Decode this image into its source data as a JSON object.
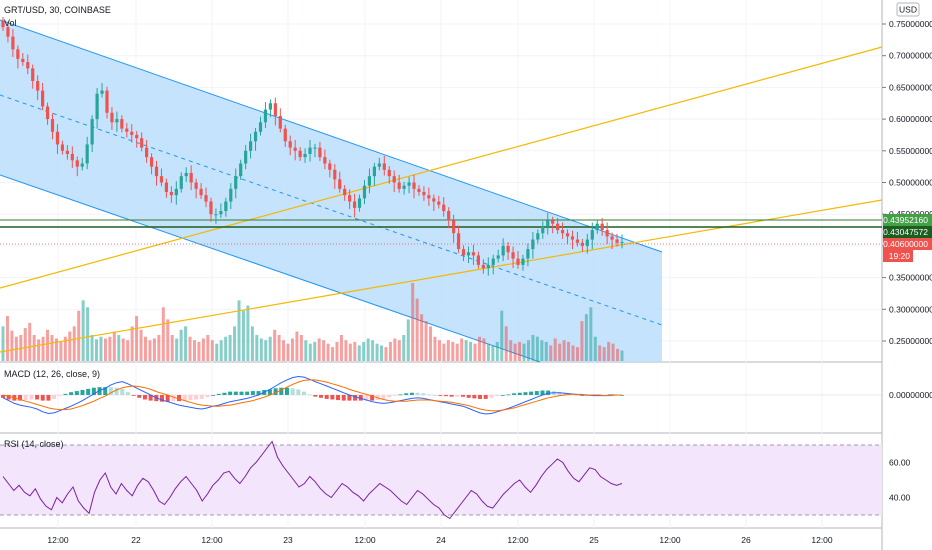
{
  "header": {
    "title": "GRT/USD, 30, COINBASE",
    "vol_label": "Vol",
    "currency": "USD"
  },
  "macd": {
    "label": "MACD (12, 26, close, 9)"
  },
  "rsi": {
    "label": "RSI (14, close)"
  },
  "price_tags": {
    "level_1": "0.43952160",
    "level_2": "0.43047572",
    "last_price": "0.40600000",
    "countdown": "19:20"
  },
  "colors": {
    "up": "#26a69a",
    "down": "#ef5350",
    "channel_fill": "#bbdefb",
    "channel_line": "#2196f3",
    "trend_line": "#f5b800",
    "level_line": "#2e7d32",
    "macd_line": "#2962ff",
    "signal_line": "#ff6d00",
    "rsi_line": "#7b1fa2",
    "rsi_band": "#f3e5fb"
  },
  "chart_data": [
    {
      "type": "candlestick",
      "title": "GRT/USD, 30, COINBASE",
      "x_ticks": [
        "12:00",
        "22",
        "12:00",
        "23",
        "12:00",
        "24",
        "12:00",
        "25",
        "12:00",
        "26",
        "12:00"
      ],
      "y_ticks": [
        "0.75000000",
        "0.70000000",
        "0.65000000",
        "0.60000000",
        "0.55000000",
        "0.50000000",
        "0.45000000",
        "0.40000000",
        "0.35000000",
        "0.30000000",
        "0.25000000"
      ],
      "ylim": [
        0.21,
        0.77
      ],
      "last_price": 0.406,
      "horizontal_levels": [
        0.4395216,
        0.43047572
      ],
      "close": [
        0.745,
        0.73,
        0.71,
        0.695,
        0.69,
        0.68,
        0.66,
        0.645,
        0.62,
        0.6,
        0.58,
        0.56,
        0.55,
        0.545,
        0.535,
        0.525,
        0.53,
        0.56,
        0.6,
        0.64,
        0.645,
        0.61,
        0.595,
        0.6,
        0.585,
        0.58,
        0.575,
        0.57,
        0.555,
        0.54,
        0.525,
        0.51,
        0.5,
        0.485,
        0.48,
        0.49,
        0.51,
        0.515,
        0.5,
        0.49,
        0.48,
        0.47,
        0.45,
        0.45,
        0.455,
        0.47,
        0.49,
        0.51,
        0.53,
        0.55,
        0.565,
        0.58,
        0.595,
        0.615,
        0.625,
        0.605,
        0.585,
        0.565,
        0.555,
        0.55,
        0.54,
        0.545,
        0.555,
        0.555,
        0.54,
        0.53,
        0.52,
        0.505,
        0.49,
        0.48,
        0.47,
        0.46,
        0.475,
        0.495,
        0.51,
        0.525,
        0.53,
        0.52,
        0.51,
        0.5,
        0.49,
        0.495,
        0.5,
        0.49,
        0.485,
        0.48,
        0.475,
        0.47,
        0.465,
        0.455,
        0.44,
        0.42,
        0.395,
        0.385,
        0.39,
        0.385,
        0.37,
        0.365,
        0.37,
        0.38,
        0.385,
        0.4,
        0.39,
        0.38,
        0.37,
        0.38,
        0.395,
        0.41,
        0.42,
        0.43,
        0.44,
        0.435,
        0.425,
        0.42,
        0.415,
        0.41,
        0.405,
        0.4,
        0.41,
        0.425,
        0.435,
        0.425,
        0.415,
        0.41,
        0.405,
        0.406
      ]
    },
    {
      "type": "bar",
      "title": "Vol",
      "values": [
        40,
        52,
        35,
        28,
        30,
        38,
        44,
        30,
        25,
        28,
        36,
        30,
        26,
        22,
        28,
        34,
        40,
        58,
        70,
        62,
        30,
        25,
        28,
        26,
        28,
        34,
        30,
        26,
        24,
        40,
        52,
        36,
        28,
        24,
        26,
        30,
        62,
        48,
        30,
        26,
        36,
        40,
        28,
        24,
        22,
        26,
        30,
        24,
        20,
        24,
        28,
        30,
        40,
        70,
        58,
        64,
        40,
        30,
        26,
        24,
        28,
        36,
        30,
        24,
        20,
        26,
        34,
        30,
        24,
        20,
        22,
        26,
        24,
        20,
        16,
        22,
        30,
        24,
        20,
        22,
        18,
        22,
        26,
        24,
        20,
        18,
        16,
        22,
        26,
        24,
        30,
        48,
        90,
        72,
        54,
        46,
        40,
        28,
        24,
        20,
        24,
        22,
        20,
        26,
        24,
        22,
        20,
        28,
        26,
        20,
        18,
        22,
        58,
        40,
        24,
        20,
        22,
        20,
        24,
        30,
        28,
        24,
        22,
        18,
        26,
        20,
        24,
        22,
        18,
        16,
        46,
        54,
        62,
        28,
        18,
        16,
        22,
        20,
        14,
        12
      ]
    },
    {
      "type": "line",
      "title": "MACD (12, 26, close, 9)",
      "y_ticks": [
        "0.00000000"
      ],
      "ylim": [
        -0.05,
        0.05
      ],
      "series": [
        {
          "name": "MACD",
          "values": [
            -0.005,
            -0.01,
            -0.015,
            -0.018,
            -0.02,
            -0.022,
            -0.025,
            -0.03,
            -0.033,
            -0.032,
            -0.028,
            -0.024,
            -0.02,
            -0.015,
            -0.01,
            -0.004,
            0.002,
            0.008,
            0.012,
            0.018,
            0.022,
            0.024,
            0.02,
            0.015,
            0.01,
            0.005,
            0.0,
            -0.005,
            -0.009,
            -0.012,
            -0.015,
            -0.018,
            -0.02,
            -0.022,
            -0.024,
            -0.025,
            -0.023,
            -0.02,
            -0.018,
            -0.015,
            -0.012,
            -0.01,
            -0.008,
            -0.006,
            -0.003,
            0.0,
            0.005,
            0.01,
            0.016,
            0.022,
            0.027,
            0.031,
            0.033,
            0.032,
            0.028,
            0.024,
            0.02,
            0.016,
            0.012,
            0.008,
            0.004,
            0.0,
            -0.003,
            -0.006,
            -0.009,
            -0.012,
            -0.014,
            -0.015,
            -0.014,
            -0.012,
            -0.01,
            -0.008,
            -0.006,
            -0.005,
            -0.006,
            -0.008,
            -0.01,
            -0.012,
            -0.014,
            -0.016,
            -0.018,
            -0.02,
            -0.024,
            -0.028,
            -0.032,
            -0.034,
            -0.033,
            -0.03,
            -0.027,
            -0.024,
            -0.02,
            -0.016,
            -0.012,
            -0.008,
            -0.004,
            0.0,
            0.003,
            0.004,
            0.004,
            0.003,
            0.002,
            0.001,
            0.0,
            0.0,
            -0.001,
            -0.001,
            -0.001,
            0.0,
            0.0,
            0.0
          ]
        },
        {
          "name": "Signal",
          "values": [
            0.0,
            -0.002,
            -0.005,
            -0.008,
            -0.011,
            -0.014,
            -0.017,
            -0.02,
            -0.023,
            -0.025,
            -0.026,
            -0.026,
            -0.025,
            -0.022,
            -0.019,
            -0.015,
            -0.011,
            -0.006,
            -0.002,
            0.004,
            0.009,
            0.013,
            0.015,
            0.016,
            0.015,
            0.013,
            0.01,
            0.006,
            0.003,
            0.0,
            -0.004,
            -0.007,
            -0.01,
            -0.013,
            -0.016,
            -0.018,
            -0.019,
            -0.02,
            -0.02,
            -0.019,
            -0.018,
            -0.016,
            -0.014,
            -0.012,
            -0.01,
            -0.007,
            -0.004,
            0.0,
            0.004,
            0.009,
            0.014,
            0.019,
            0.023,
            0.026,
            0.027,
            0.027,
            0.025,
            0.023,
            0.02,
            0.017,
            0.014,
            0.01,
            0.007,
            0.004,
            0.001,
            -0.002,
            -0.005,
            -0.008,
            -0.01,
            -0.011,
            -0.011,
            -0.011,
            -0.01,
            -0.009,
            -0.009,
            -0.009,
            -0.01,
            -0.011,
            -0.012,
            -0.013,
            -0.015,
            -0.017,
            -0.019,
            -0.022,
            -0.025,
            -0.027,
            -0.028,
            -0.028,
            -0.027,
            -0.025,
            -0.023,
            -0.02,
            -0.017,
            -0.014,
            -0.011,
            -0.008,
            -0.005,
            -0.003,
            -0.001,
            0.0,
            0.001,
            0.001,
            0.001,
            0.0,
            0.0,
            0.0,
            -0.001,
            -0.001,
            0.0,
            0.0
          ]
        }
      ]
    },
    {
      "type": "line",
      "title": "RSI (14, close)",
      "y_ticks": [
        "60.00",
        "40.00"
      ],
      "ylim": [
        22,
        76
      ],
      "bands": [
        70,
        30
      ],
      "series": [
        {
          "name": "RSI",
          "values": [
            52,
            48,
            44,
            47,
            43,
            41,
            45,
            39,
            35,
            33,
            40,
            37,
            42,
            46,
            38,
            34,
            31,
            43,
            50,
            54,
            46,
            42,
            48,
            44,
            41,
            47,
            51,
            49,
            44,
            38,
            36,
            40,
            45,
            49,
            52,
            48,
            44,
            38,
            42,
            47,
            50,
            54,
            55,
            51,
            48,
            52,
            57,
            60,
            64,
            68,
            72,
            63,
            58,
            54,
            50,
            46,
            48,
            52,
            49,
            45,
            42,
            40,
            44,
            48,
            46,
            43,
            41,
            38,
            42,
            45,
            48,
            46,
            44,
            41,
            38,
            36,
            40,
            44,
            42,
            39,
            36,
            34,
            30,
            28,
            32,
            36,
            40,
            44,
            42,
            38,
            35,
            34,
            38,
            42,
            45,
            48,
            50,
            46,
            43,
            47,
            52,
            56,
            59,
            62,
            60,
            55,
            51,
            49,
            53,
            57,
            56,
            52,
            50,
            48,
            47,
            48
          ]
        }
      ]
    }
  ]
}
